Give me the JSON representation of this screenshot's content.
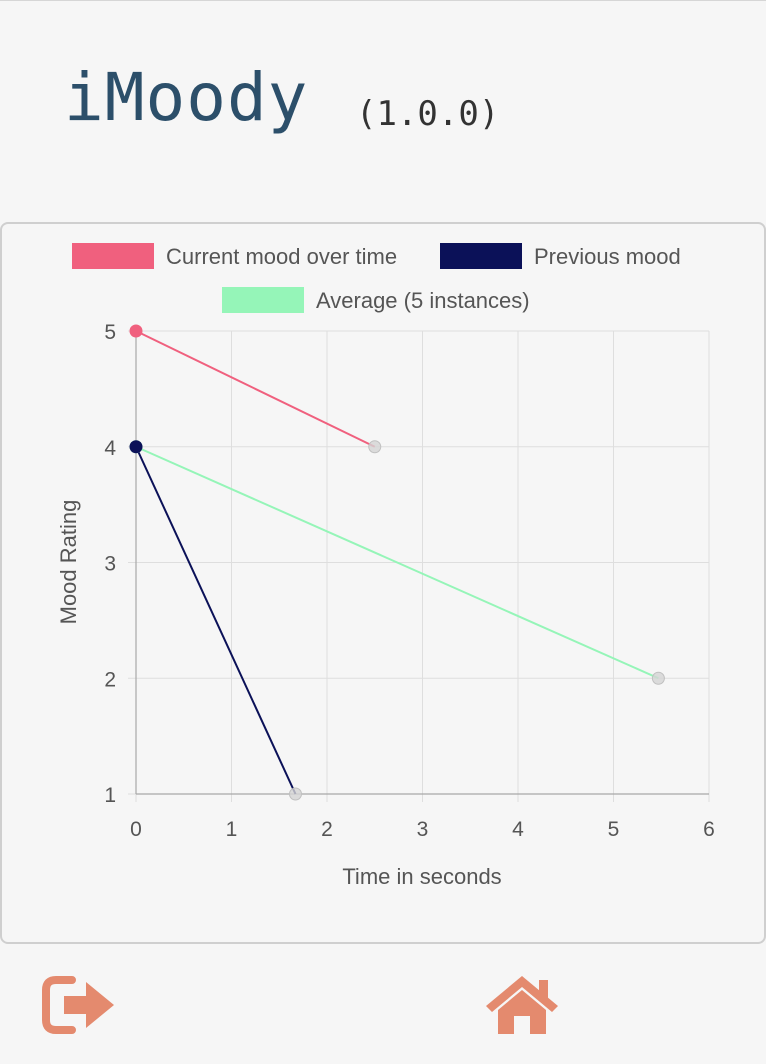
{
  "header": {
    "title": "iMoody",
    "version": "(1.0.0)"
  },
  "colors": {
    "current": "#f0607e",
    "previous": "#0b1158",
    "average": "#95f5b8",
    "title": "#2c4f6a",
    "nav_icon": "#e48a6e",
    "endpoint": "#d4d4d4"
  },
  "chart_data": {
    "type": "line",
    "xlabel": "Time in seconds",
    "ylabel": "Mood Rating",
    "xlim": [
      0,
      6
    ],
    "ylim": [
      1,
      5
    ],
    "xticks": [
      "0",
      "1",
      "2",
      "3",
      "4",
      "5",
      "6"
    ],
    "yticks": [
      "1",
      "2",
      "3",
      "4",
      "5"
    ],
    "grid": true,
    "legend_position": "top",
    "series": [
      {
        "name": "Current mood over time",
        "color": "#f0607e",
        "points": [
          [
            0,
            5
          ],
          [
            2.5,
            4
          ]
        ]
      },
      {
        "name": "Previous mood",
        "color": "#0b1158",
        "points": [
          [
            0,
            4
          ],
          [
            1.67,
            1
          ]
        ]
      },
      {
        "name": "Average (5 instances)",
        "color": "#95f5b8",
        "points": [
          [
            0,
            4
          ],
          [
            5.47,
            2
          ]
        ]
      }
    ]
  },
  "footer": {
    "exit_icon": "sign-out-icon",
    "home_icon": "home-icon"
  }
}
